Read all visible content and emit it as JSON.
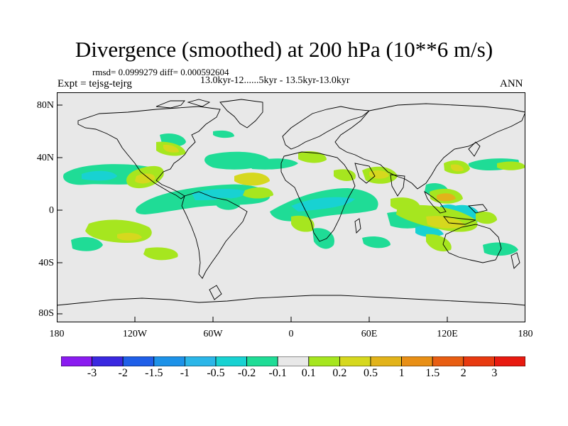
{
  "title": "Divergence (smoothed) at 200 hPa (10**6 m/s)",
  "stats": "rmsd= 0.0999279 diff= 0.000592604",
  "experiment": "Expt = tejsg-tejrg",
  "period": "13.0kyr-12......5kyr - 13.5kyr-13.0kyr",
  "season": "ANN",
  "lat_labels": [
    "80N",
    "40N",
    "0",
    "40S",
    "80S"
  ],
  "lon_labels": [
    "180",
    "120W",
    "60W",
    "0",
    "60E",
    "120E",
    "180"
  ],
  "colorbar": {
    "labels": [
      "-3",
      "-2",
      "-1.5",
      "-1",
      "-0.5",
      "-0.2",
      "-0.1",
      "0.1",
      "0.2",
      "0.5",
      "1",
      "1.5",
      "2",
      "3"
    ],
    "colors": [
      "#8a1bf0",
      "#3a28e0",
      "#1f5fe8",
      "#1d92e8",
      "#2bb6e8",
      "#18d2d2",
      "#1fdc96",
      "#e8e8e8",
      "#a6e61f",
      "#d6d81e",
      "#e2b31a",
      "#e88f16",
      "#e85e12",
      "#e83a10",
      "#e81a10"
    ]
  },
  "colors": {
    "ocean": "#e8e8e8",
    "neg_light": "#1fdc96",
    "neg_mid": "#18d2d2",
    "pos_light": "#a6e61f",
    "pos_mid": "#d6d81e",
    "pos_strong": "#e2b31a"
  }
}
